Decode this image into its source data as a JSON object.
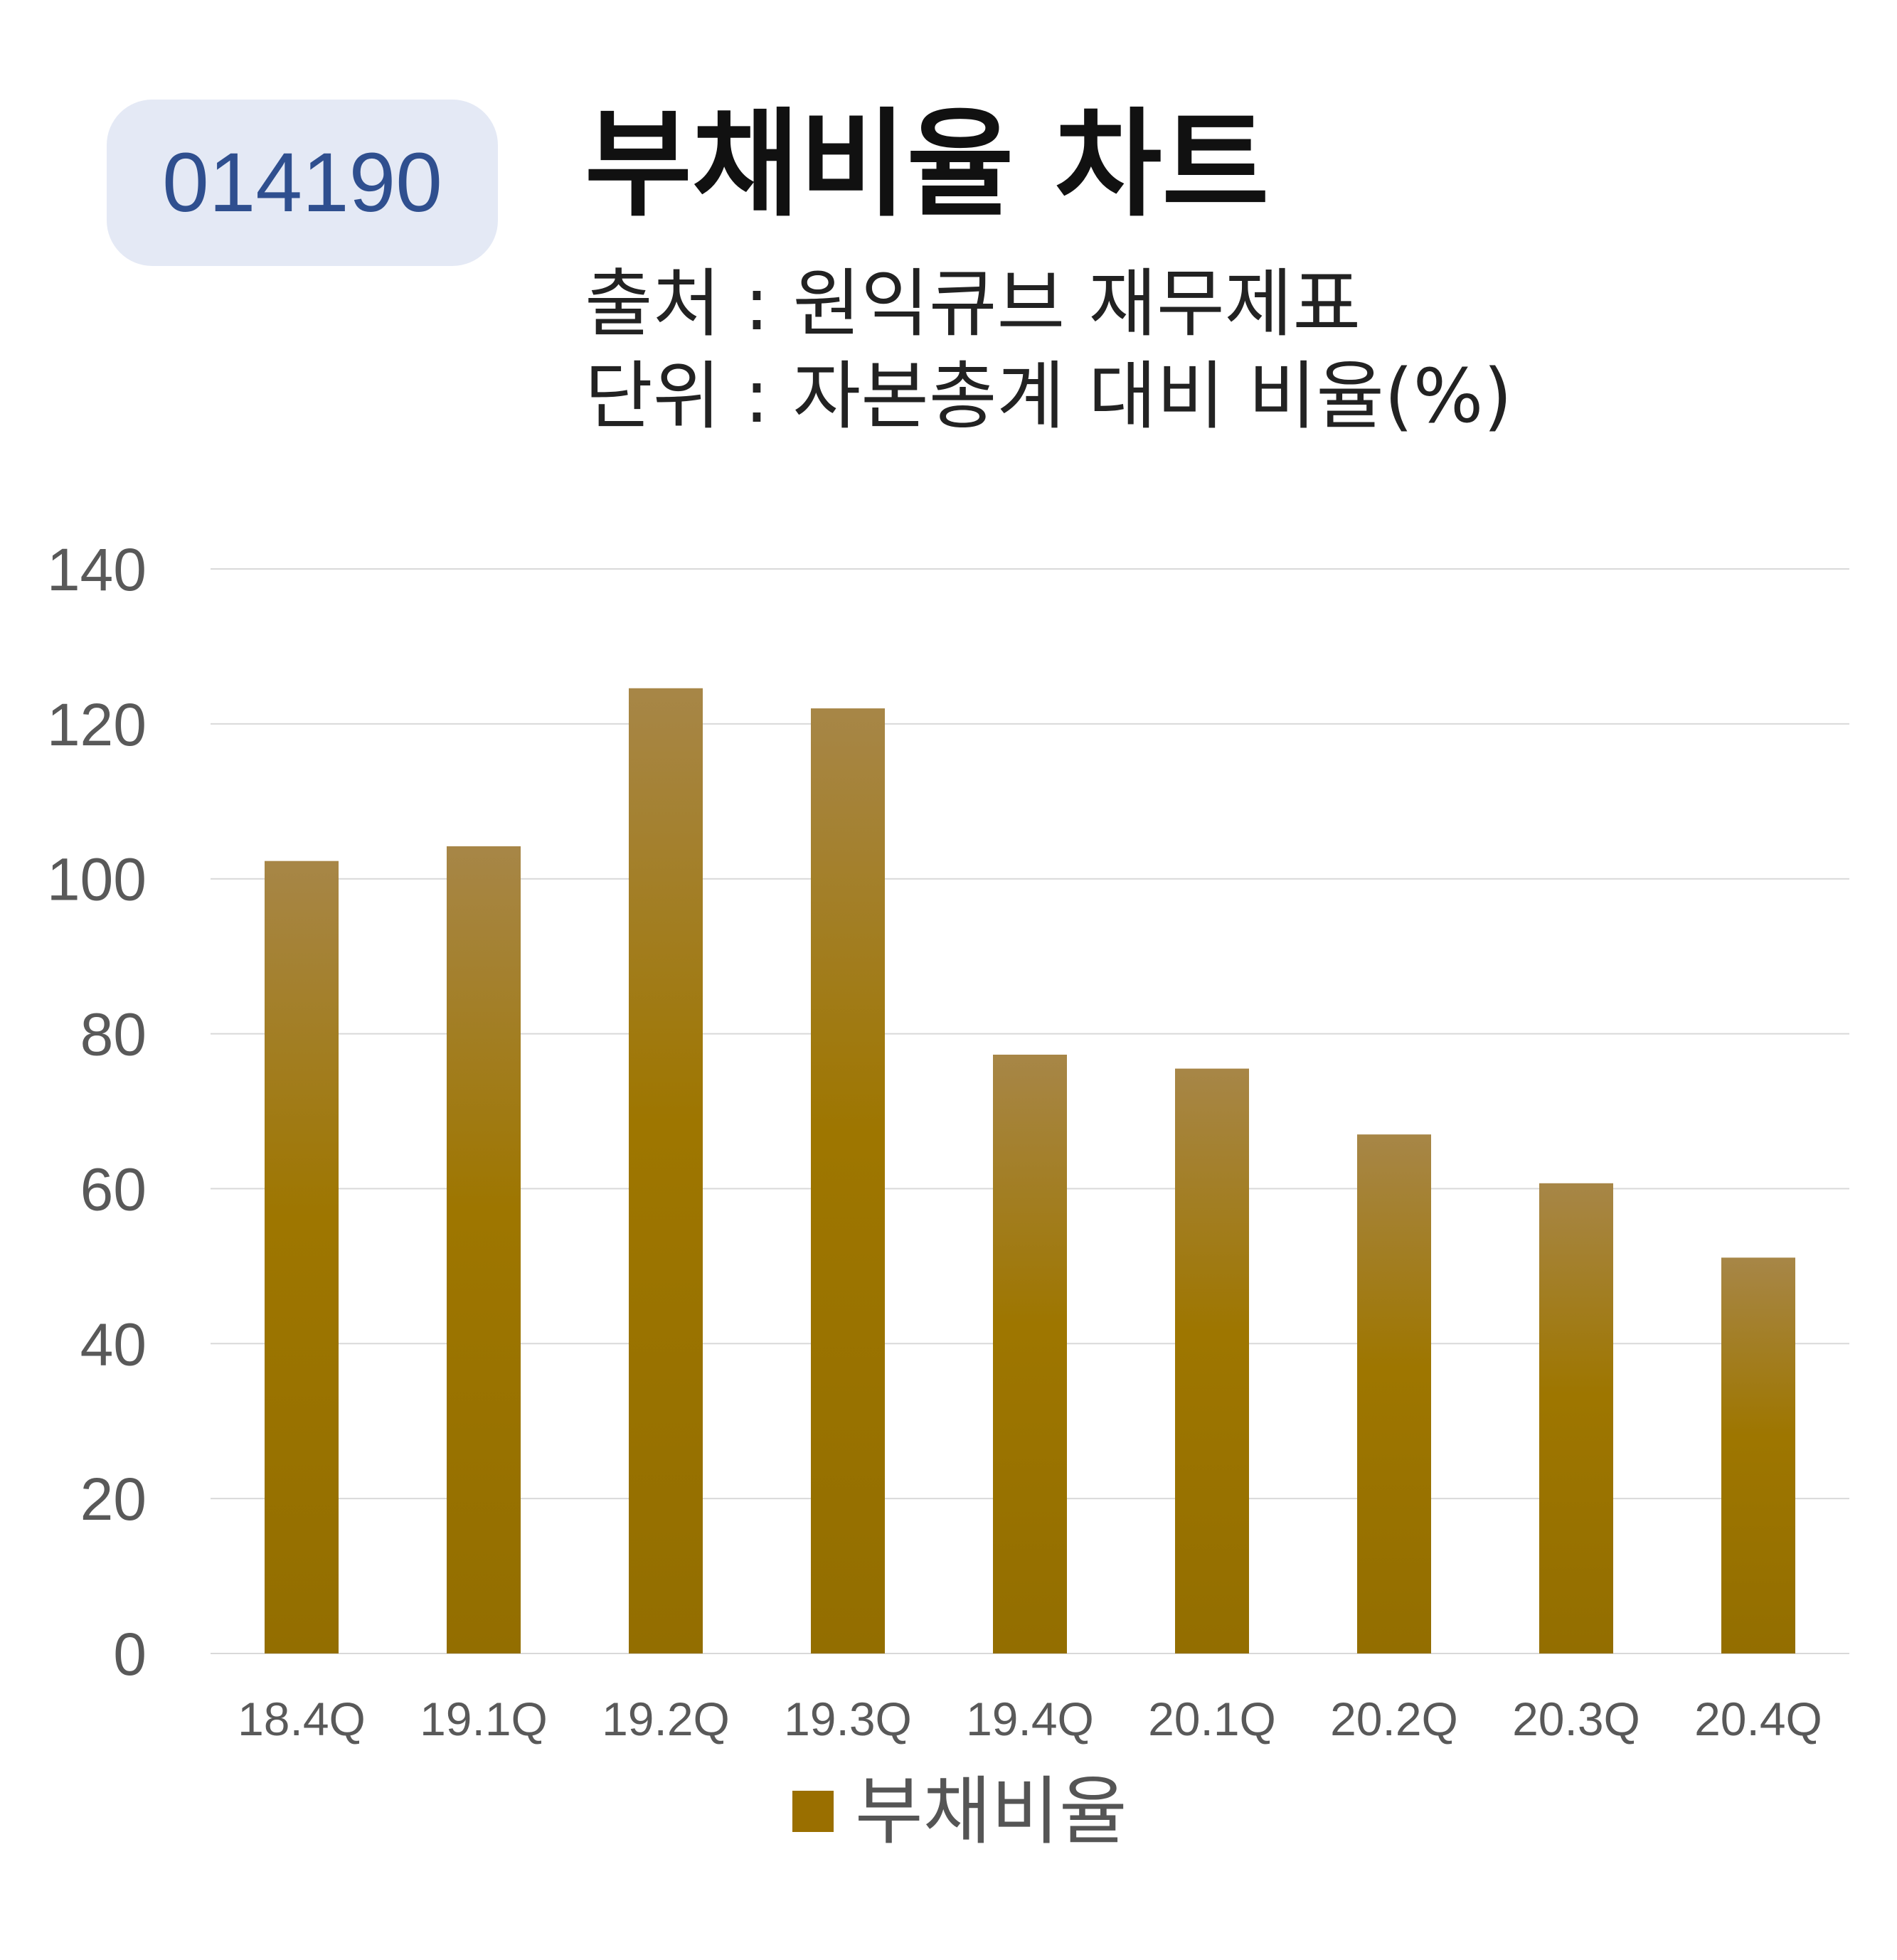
{
  "header": {
    "code": "014190",
    "title": "부채비율 차트",
    "source": "출처 : 원익큐브 재무제표",
    "unit": "단위 : 자본총계 대비 비율(%)"
  },
  "colors": {
    "bar_top": "#a78647",
    "bar_bottom": "#936e00",
    "grid": "#d9d9d9",
    "axis_text": "#595959",
    "badge_bg": "#e4e9f5",
    "badge_text": "#2f4f8f"
  },
  "chart_data": {
    "type": "bar",
    "title": "",
    "xlabel": "",
    "ylabel": "",
    "categories": [
      "18.4Q",
      "19.1Q",
      "19.2Q",
      "19.3Q",
      "19.4Q",
      "20.1Q",
      "20.2Q",
      "20.3Q",
      "20.4Q"
    ],
    "series": [
      {
        "name": "부채비율",
        "values": [
          102.3,
          104.2,
          124.6,
          122.0,
          77.3,
          75.5,
          67.0,
          60.7,
          51.1
        ]
      }
    ],
    "ylim": [
      0,
      140
    ],
    "yticks": [
      0,
      20,
      40,
      60,
      80,
      100,
      120,
      140
    ],
    "grid": true,
    "legend": "bottom"
  }
}
